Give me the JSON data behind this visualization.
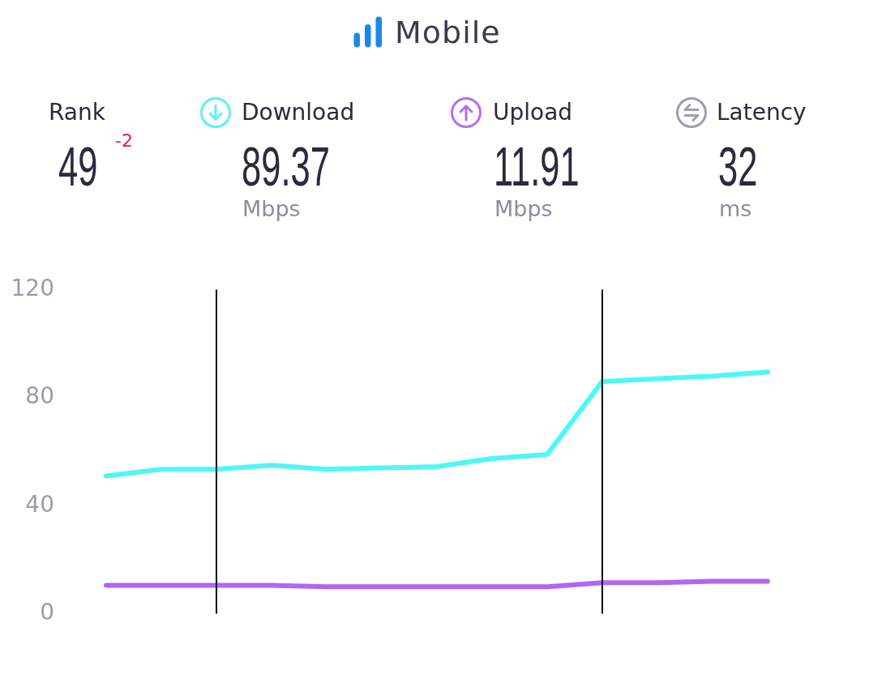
{
  "chart_data": [
    {
      "type": "other",
      "title": "Mobile",
      "categories": [
        "Rank",
        "Download",
        "Upload",
        "Latency"
      ],
      "values": [
        49,
        89.37,
        11.91,
        32
      ],
      "data_labels": true,
      "annotations": [
        "-2",
        "Mbps",
        "Mbps",
        "ms"
      ]
    },
    {
      "type": "line",
      "categories": [
        null,
        null,
        null,
        null,
        null,
        null,
        null,
        null,
        null,
        null,
        null,
        null,
        null
      ],
      "series": [
        {
          "color": "#50f7f7",
          "values": [
            51,
            53.5,
            53.5,
            55,
            53.5,
            54,
            54.5,
            57.5,
            59,
            86,
            87,
            88,
            89.5
          ]
        },
        {
          "color": "#b066f6",
          "values": [
            10.5,
            10.5,
            10.5,
            10.5,
            10,
            10,
            10,
            10,
            10,
            11.5,
            11.5,
            12,
            12
          ]
        }
      ],
      "ylim": [
        0,
        120
      ],
      "yticks": [
        0,
        40,
        80,
        120
      ],
      "tick_labels": "y",
      "grid": false,
      "legend": false,
      "marker": "none"
    }
  ]
}
